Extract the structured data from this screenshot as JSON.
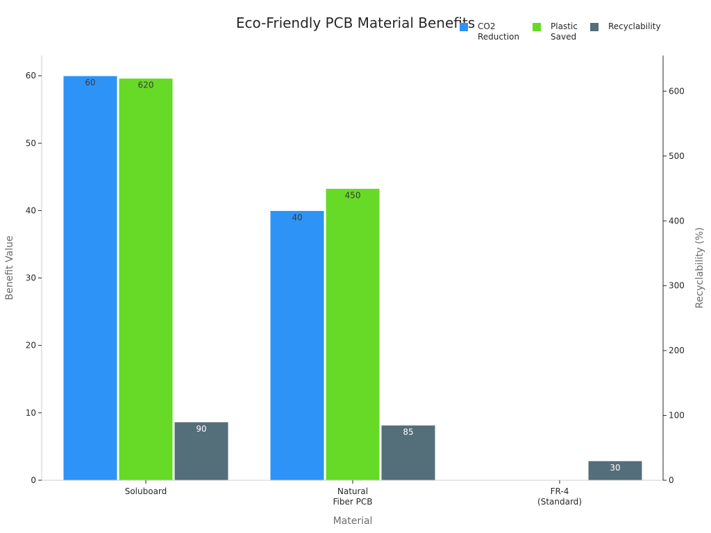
{
  "chart_data": {
    "type": "bar",
    "title": "Eco-Friendly PCB Material Benefits",
    "xlabel": "Material",
    "ylabel": "Benefit Value",
    "y2label": "Recyclability (%)",
    "categories": [
      [
        "Soluboard"
      ],
      [
        "Natural",
        "Fiber PCB"
      ],
      [
        "FR-4",
        "(Standard)"
      ]
    ],
    "ylim": [
      0,
      63
    ],
    "y2lim": [
      0,
      655
    ],
    "yticks": [
      0,
      10,
      20,
      30,
      40,
      50,
      60
    ],
    "y2ticks": [
      0,
      100,
      200,
      300,
      400,
      500,
      600
    ],
    "grid": false,
    "legend_position": "top-right",
    "series": [
      {
        "name": [
          "CO2",
          "Reduction"
        ],
        "axis": "left",
        "color": "#2e93f6",
        "values": [
          60,
          40,
          0
        ],
        "labels": [
          "60",
          "40",
          ""
        ],
        "label_color": "#3a3a3a"
      },
      {
        "name": [
          "Plastic",
          "Saved"
        ],
        "axis": "right",
        "color": "#66da26",
        "values": [
          620,
          450,
          0
        ],
        "labels": [
          "620",
          "450",
          ""
        ],
        "label_color": "#3a3a3a"
      },
      {
        "name": [
          "Recyclability"
        ],
        "axis": "right",
        "color": "#546e7a",
        "values": [
          90,
          85,
          30
        ],
        "labels": [
          "90",
          "85",
          "30"
        ],
        "label_color": "#ffffff"
      }
    ]
  }
}
